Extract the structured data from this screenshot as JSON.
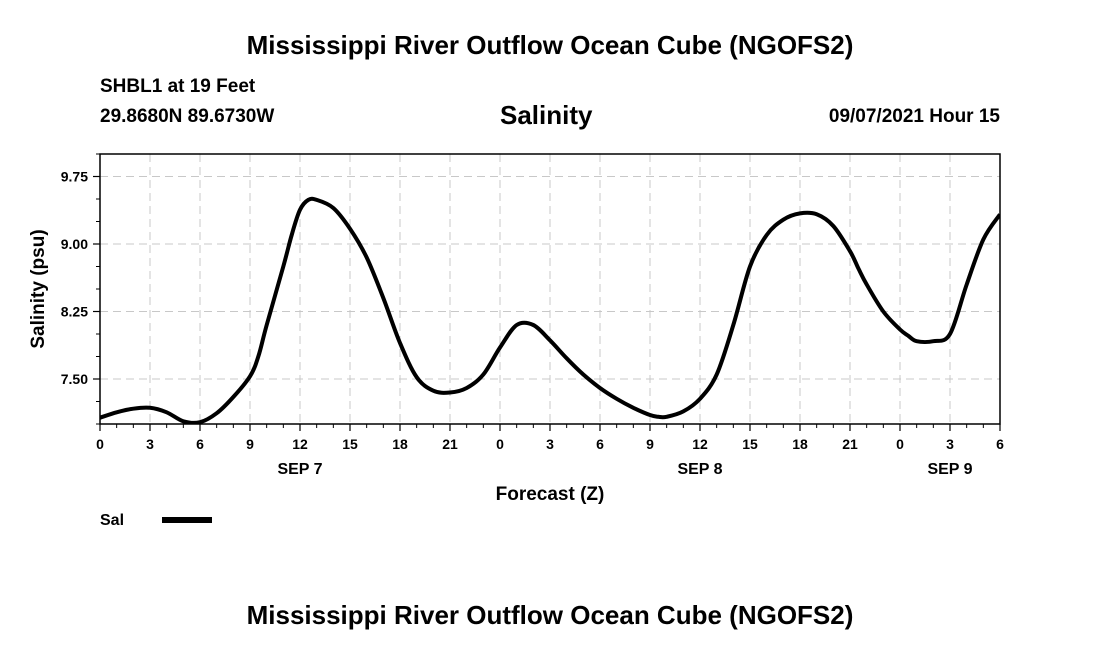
{
  "header": {
    "title": "Mississippi River Outflow Ocean Cube (NGOFS2)",
    "station": "SHBL1 at 19 Feet",
    "coords": "29.8680N  89.6730W",
    "variable": "Salinity",
    "datetime": "09/07/2021 Hour 15"
  },
  "footer": {
    "title": "Mississippi River Outflow Ocean Cube (NGOFS2)"
  },
  "legend": {
    "label": "Sal",
    "color": "#000000"
  },
  "chart_data": {
    "type": "line",
    "title": "Salinity",
    "xlabel": "Forecast (Z)",
    "ylabel": "Salinity (psu)",
    "xlim": [
      0,
      54
    ],
    "ylim": [
      7.0,
      10.0
    ],
    "y_ticks": [
      7.5,
      8.25,
      9.0,
      9.75
    ],
    "y_tick_labels": [
      "7.50",
      "8.25",
      "9.00",
      "9.75"
    ],
    "x_ticks": [
      0,
      3,
      6,
      9,
      12,
      15,
      18,
      21,
      24,
      27,
      30,
      33,
      36,
      39,
      42,
      45,
      48,
      51,
      54
    ],
    "x_tick_labels": [
      "0",
      "3",
      "6",
      "9",
      "12",
      "15",
      "18",
      "21",
      "0",
      "3",
      "6",
      "9",
      "12",
      "15",
      "18",
      "21",
      "0",
      "3",
      "6"
    ],
    "date_labels": [
      {
        "x": 12,
        "label": "SEP 7"
      },
      {
        "x": 36,
        "label": "SEP 8"
      },
      {
        "x": 51,
        "label": "SEP 9"
      }
    ],
    "grid": true,
    "legend_position": "bottom-left",
    "series": [
      {
        "name": "Sal",
        "color": "#000000",
        "x": [
          0,
          1,
          2,
          3,
          4,
          5,
          6,
          7,
          8,
          9,
          9.5,
          10,
          11,
          11.5,
          12,
          12.5,
          13,
          14,
          15,
          16,
          17,
          18,
          19,
          20,
          21,
          22,
          23,
          24,
          25,
          26,
          27,
          28,
          29,
          30,
          31,
          32,
          33,
          33.5,
          34,
          35,
          36,
          37,
          38,
          39,
          40,
          41,
          42,
          43,
          44,
          45,
          45.5,
          46,
          47,
          48,
          48.5,
          49,
          50,
          51,
          52,
          53,
          54
        ],
        "y": [
          7.07,
          7.13,
          7.17,
          7.18,
          7.13,
          7.03,
          7.02,
          7.12,
          7.3,
          7.53,
          7.75,
          8.1,
          8.75,
          9.1,
          9.38,
          9.49,
          9.49,
          9.4,
          9.17,
          8.85,
          8.4,
          7.9,
          7.52,
          7.37,
          7.35,
          7.4,
          7.55,
          7.85,
          8.1,
          8.1,
          7.93,
          7.73,
          7.55,
          7.4,
          7.28,
          7.18,
          7.1,
          7.08,
          7.08,
          7.14,
          7.28,
          7.55,
          8.1,
          8.75,
          9.1,
          9.27,
          9.34,
          9.33,
          9.2,
          8.92,
          8.73,
          8.55,
          8.25,
          8.05,
          7.98,
          7.92,
          7.92,
          8.0,
          8.55,
          9.05,
          9.33
        ]
      }
    ]
  }
}
